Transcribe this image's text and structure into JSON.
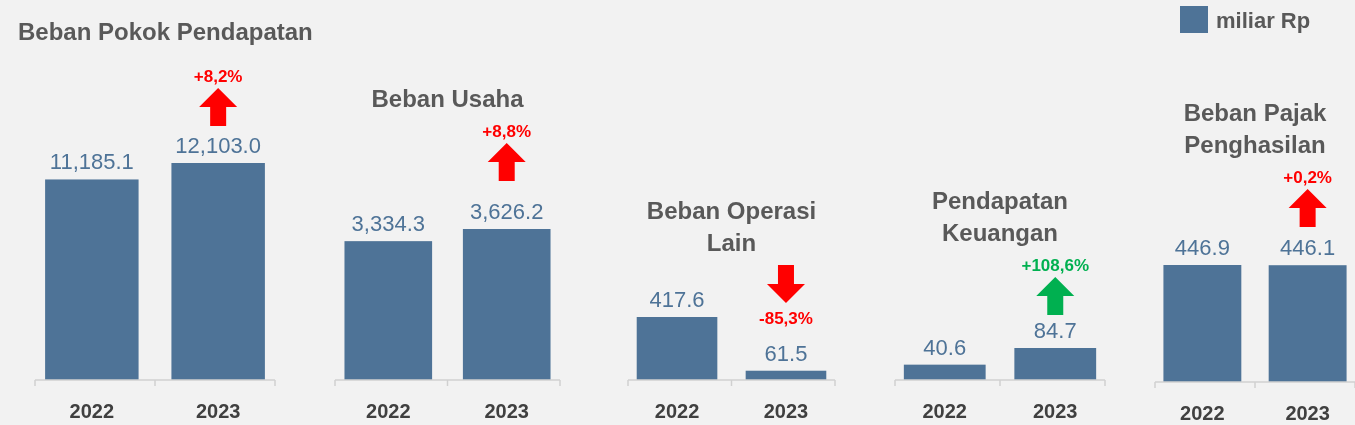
{
  "chart_data": [
    {
      "type": "bar",
      "title": "Beban Pokok Pendapatan",
      "categories": [
        "2022",
        "2023"
      ],
      "series": [
        {
          "color": "#4e7397",
          "values": [
            11185.1,
            12103.0
          ],
          "value_labels": [
            "11,185.1",
            "12,103.0"
          ]
        }
      ],
      "tick_labels": "x",
      "annotations": [
        "+8,2%"
      ]
    },
    {
      "type": "bar",
      "title": "Beban Usaha",
      "categories": [
        "2022",
        "2023"
      ],
      "series": [
        {
          "color": "#4e7397",
          "values": [
            3334.3,
            3626.2
          ],
          "value_labels": [
            "3,334.3",
            "3,626.2"
          ]
        }
      ],
      "tick_labels": "x",
      "annotations": [
        "+8,8%"
      ]
    },
    {
      "type": "bar",
      "title": "Beban Operasi\nLain",
      "categories": [
        "2022",
        "2023"
      ],
      "series": [
        {
          "color": "#4e7397",
          "values": [
            417.6,
            61.5
          ],
          "value_labels": [
            "417.6",
            "61.5"
          ]
        }
      ],
      "tick_labels": "x",
      "annotations": [
        "-85,3%"
      ]
    },
    {
      "type": "bar",
      "title": "Pendapatan\nKeuangan",
      "categories": [
        "2022",
        "2023"
      ],
      "series": [
        {
          "color": "#4e7397",
          "values": [
            40.6,
            84.7
          ],
          "value_labels": [
            "40.6",
            "84.7"
          ]
        }
      ],
      "tick_labels": "x",
      "annotations": [
        "+108,6%"
      ]
    },
    {
      "type": "bar",
      "title": "Beban Pajak\nPenghasilan",
      "categories": [
        "2022",
        "2023"
      ],
      "series": [
        {
          "name": "miliar Rp",
          "color": "#4e7397",
          "values": [
            446.9,
            446.1
          ],
          "value_labels": [
            "446.9",
            "446.1"
          ]
        }
      ],
      "tick_labels": "x",
      "legend": "top",
      "annotations": [
        "+0,2%"
      ]
    }
  ]
}
